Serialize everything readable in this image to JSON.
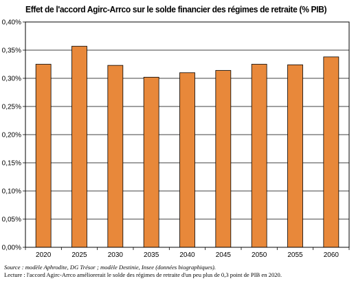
{
  "chart_data": {
    "type": "bar",
    "title": "Effet de l'accord Agirc-Arrco sur le solde financier des régimes de retraite (% PIB)",
    "xlabel": "",
    "ylabel": "",
    "categories": [
      "2020",
      "2025",
      "2030",
      "2035",
      "2040",
      "2045",
      "2050",
      "2055",
      "2060"
    ],
    "series": [
      {
        "values": [
          0.325,
          0.357,
          0.323,
          0.302,
          0.31,
          0.314,
          0.325,
          0.324,
          0.338
        ]
      }
    ],
    "ylim": [
      0,
      0.4
    ],
    "yticks": [
      0.0,
      0.05,
      0.1,
      0.15,
      0.2,
      0.25,
      0.3,
      0.35,
      0.4
    ],
    "ytick_labels": [
      "0,00%",
      "0,05%",
      "0,10%",
      "0,15%",
      "0,20%",
      "0,25%",
      "0,30%",
      "0,35%",
      "0,40%"
    ],
    "grid": true,
    "bar_color": "#E8883A",
    "legend": "none"
  },
  "notes": {
    "source": "Source : modèle Aphrodite, DG Trésor ; modèle Destinie, Insee (données biographiques).",
    "lecture": "Lecture : l'accord Agirc-Arrco améliorerait le solde des régimes de retraite d'un peu plus de 0,3 point de PIB en 2020."
  }
}
